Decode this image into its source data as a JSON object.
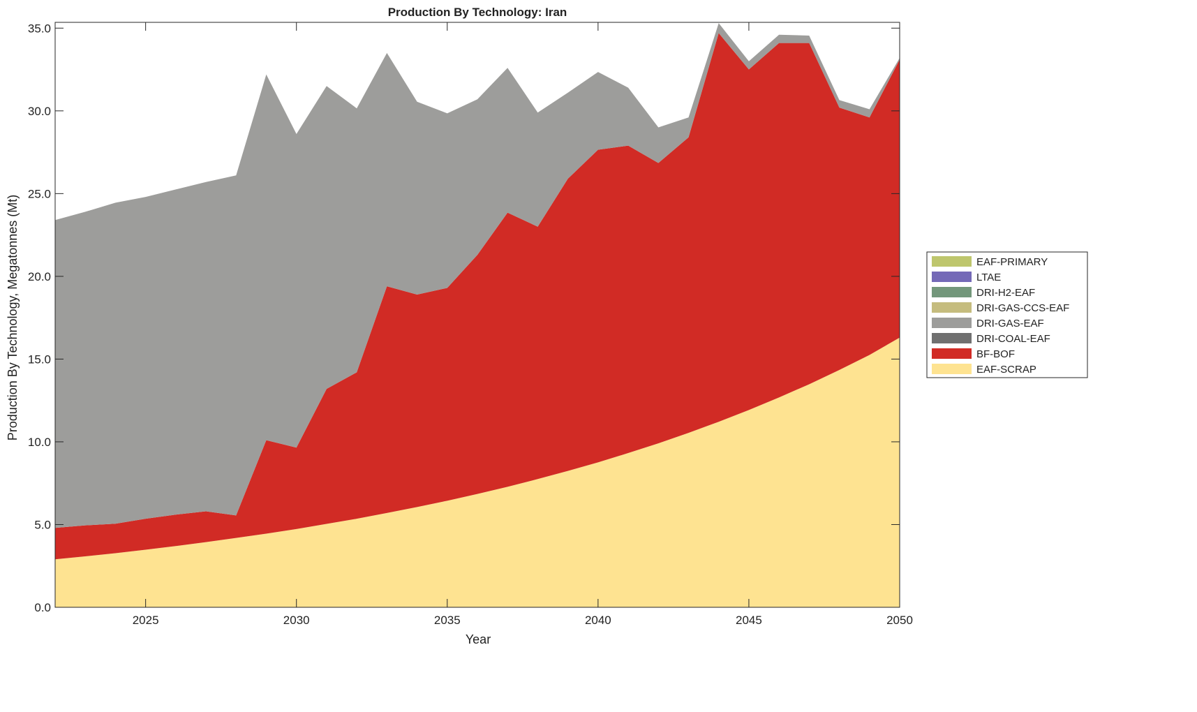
{
  "chart_data": {
    "type": "area",
    "stacked": true,
    "title": "Production By Technology: Iran",
    "xlabel": "Year",
    "ylabel": "Production By Technology, Megatonnes (Mt)",
    "xlim": [
      2022,
      2050
    ],
    "ylim": [
      0,
      35.35
    ],
    "xticks": [
      2025,
      2030,
      2035,
      2040,
      2045,
      2050
    ],
    "yticks": [
      0,
      5,
      10,
      15,
      20,
      25,
      30,
      35
    ],
    "ytick_labels": [
      "0.0",
      "5.0",
      "10.0",
      "15.0",
      "20.0",
      "25.0",
      "30.0",
      "35.0"
    ],
    "grid": false,
    "legend_position": "right",
    "x": [
      2022,
      2023,
      2024,
      2025,
      2026,
      2027,
      2028,
      2029,
      2030,
      2031,
      2032,
      2033,
      2034,
      2035,
      2036,
      2037,
      2038,
      2039,
      2040,
      2041,
      2042,
      2043,
      2044,
      2045,
      2046,
      2047,
      2048,
      2049,
      2050
    ],
    "series": [
      {
        "name": "EAF-SCRAP",
        "color": "#fee391",
        "values": [
          2.9,
          3.08,
          3.27,
          3.48,
          3.7,
          3.94,
          4.19,
          4.45,
          4.73,
          5.04,
          5.35,
          5.7,
          6.06,
          6.44,
          6.85,
          7.28,
          7.75,
          8.24,
          8.76,
          9.32,
          9.91,
          10.54,
          11.21,
          11.92,
          12.68,
          13.48,
          14.34,
          15.25,
          16.3
        ]
      },
      {
        "name": "BF-BOF",
        "color": "#d12b25",
        "values": [
          1.9,
          1.87,
          1.78,
          1.87,
          1.9,
          1.86,
          1.36,
          5.65,
          4.92,
          8.16,
          8.85,
          13.7,
          12.84,
          12.86,
          14.45,
          16.57,
          15.25,
          17.66,
          18.89,
          18.58,
          16.94,
          17.86,
          23.49,
          20.58,
          21.42,
          20.62,
          15.86,
          14.35,
          16.8
        ]
      },
      {
        "name": "DRI-COAL-EAF",
        "color": "#707070",
        "values": [
          0,
          0,
          0,
          0,
          0,
          0,
          0,
          0,
          0,
          0,
          0,
          0,
          0,
          0,
          0,
          0,
          0,
          0,
          0,
          0,
          0,
          0,
          0,
          0,
          0,
          0,
          0,
          0,
          0
        ]
      },
      {
        "name": "DRI-GAS-EAF",
        "color": "#9d9d9b",
        "values": [
          18.6,
          18.95,
          19.4,
          19.45,
          19.65,
          19.9,
          20.55,
          22.1,
          18.95,
          18.3,
          15.95,
          14.1,
          11.65,
          10.55,
          9.4,
          8.75,
          6.9,
          5.2,
          4.7,
          3.5,
          2.15,
          1.2,
          0.6,
          0.5,
          0.5,
          0.45,
          0.45,
          0.5,
          0.1
        ]
      },
      {
        "name": "DRI-GAS-CCS-EAF",
        "color": "#c5bc7e",
        "values": [
          0,
          0,
          0,
          0,
          0,
          0,
          0,
          0,
          0,
          0,
          0,
          0,
          0,
          0,
          0,
          0,
          0,
          0,
          0,
          0,
          0,
          0,
          0,
          0,
          0,
          0,
          0,
          0,
          0
        ]
      },
      {
        "name": "DRI-H2-EAF",
        "color": "#73977b",
        "values": [
          0,
          0,
          0,
          0,
          0,
          0,
          0,
          0,
          0,
          0,
          0,
          0,
          0,
          0,
          0,
          0,
          0,
          0,
          0,
          0,
          0,
          0,
          0,
          0,
          0,
          0,
          0,
          0,
          0
        ]
      },
      {
        "name": "LTAE",
        "color": "#7469b7",
        "values": [
          0,
          0,
          0,
          0,
          0,
          0,
          0,
          0,
          0,
          0,
          0,
          0,
          0,
          0,
          0,
          0,
          0,
          0,
          0,
          0,
          0,
          0,
          0,
          0,
          0,
          0,
          0,
          0,
          0
        ]
      },
      {
        "name": "EAF-PRIMARY",
        "color": "#bec66d",
        "values": [
          0,
          0,
          0,
          0,
          0,
          0,
          0,
          0,
          0,
          0,
          0,
          0,
          0,
          0,
          0,
          0,
          0,
          0,
          0,
          0,
          0,
          0,
          0,
          0,
          0,
          0,
          0,
          0,
          0
        ]
      }
    ]
  }
}
